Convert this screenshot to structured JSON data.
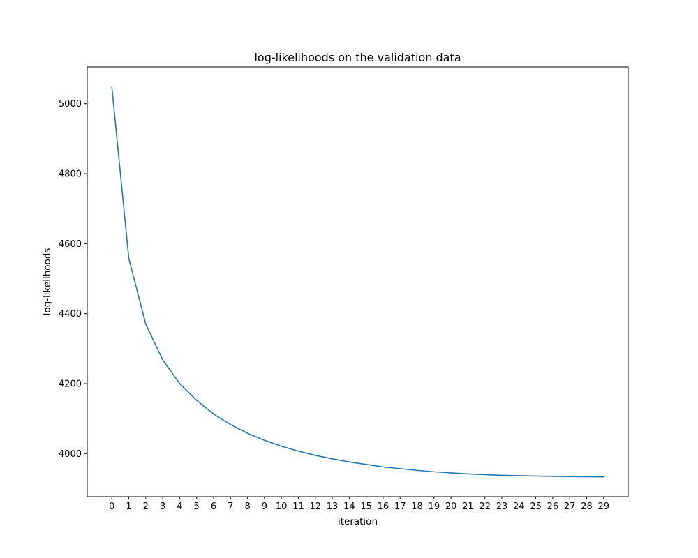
{
  "chart_data": {
    "type": "line",
    "title": "log-likelihoods on the validation data",
    "xlabel": "iteration",
    "ylabel": "log-likelihoods",
    "x": [
      0,
      1,
      2,
      3,
      4,
      5,
      6,
      7,
      8,
      9,
      10,
      11,
      12,
      13,
      14,
      15,
      16,
      17,
      18,
      19,
      20,
      21,
      22,
      23,
      24,
      25,
      26,
      27,
      28,
      29
    ],
    "x_ticks": [
      "0",
      "1",
      "2",
      "3",
      "4",
      "5",
      "6",
      "7",
      "8",
      "9",
      "10",
      "11",
      "12",
      "13",
      "14",
      "15",
      "16",
      "17",
      "18",
      "19",
      "20",
      "21",
      "22",
      "23",
      "24",
      "25",
      "26",
      "27",
      "28",
      "29"
    ],
    "y_ticks": [
      {
        "value": 4000,
        "label": "4000"
      },
      {
        "value": 4200,
        "label": "4200"
      },
      {
        "value": 4400,
        "label": "4400"
      },
      {
        "value": 4600,
        "label": "4600"
      },
      {
        "value": 4800,
        "label": "4800"
      },
      {
        "value": 5000,
        "label": "5000"
      }
    ],
    "series": [
      {
        "color": "#1f77b4",
        "values": [
          5048,
          4558,
          4370,
          4268,
          4200,
          4152,
          4113,
          4083,
          4058,
          4038,
          4021,
          4007,
          3995,
          3985,
          3976,
          3969,
          3962,
          3957,
          3952,
          3948,
          3945,
          3942,
          3940,
          3938,
          3937,
          3936,
          3935,
          3934.5,
          3934,
          3933.5
        ]
      }
    ],
    "xlim": [
      -1.45,
      30.45
    ],
    "ylim": [
      3877,
      5105
    ],
    "grid": false,
    "legend": "none"
  }
}
